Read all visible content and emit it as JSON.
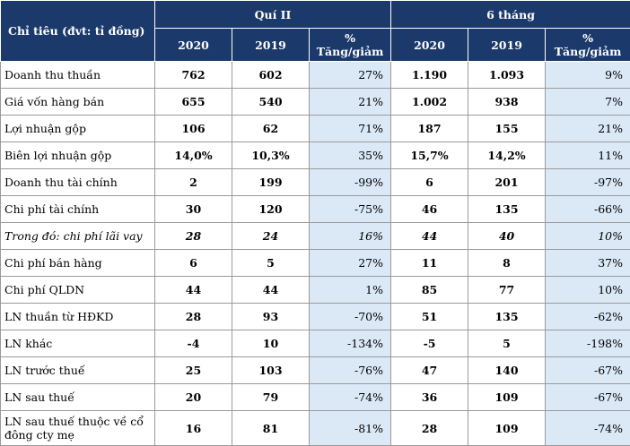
{
  "header": {
    "label": "Chỉ tiêu (đvt: tỉ đồng)",
    "q2": "Quí II",
    "h1": "6 tháng",
    "y2020": "2020",
    "y2019": "2019",
    "pct_top": "%",
    "pct_bottom": "Tăng/giảm"
  },
  "rows": [
    {
      "label": "Doanh thu thuần",
      "q20": "762",
      "q19": "602",
      "qp": "27%",
      "h20": "1.190",
      "h19": "1.093",
      "hp": "9%"
    },
    {
      "label": "Giá vốn hàng bán",
      "q20": "655",
      "q19": "540",
      "qp": "21%",
      "h20": "1.002",
      "h19": "938",
      "hp": "7%"
    },
    {
      "label": "Lợi nhuận gộp",
      "q20": "106",
      "q19": "62",
      "qp": "71%",
      "h20": "187",
      "h19": "155",
      "hp": "21%"
    },
    {
      "label": "Biên lợi nhuận gộp",
      "q20": "14,0%",
      "q19": "10,3%",
      "qp": "35%",
      "h20": "15,7%",
      "h19": "14,2%",
      "hp": "11%"
    },
    {
      "label": "Doanh thu tài chính",
      "q20": "2",
      "q19": "199",
      "qp": "-99%",
      "h20": "6",
      "h19": "201",
      "hp": "-97%"
    },
    {
      "label": "Chi phí tài chính",
      "q20": "30",
      "q19": "120",
      "qp": "-75%",
      "h20": "46",
      "h19": "135",
      "hp": "-66%"
    },
    {
      "label": "Trong đó: chi phí lãi vay",
      "q20": "28",
      "q19": "24",
      "qp": "16%",
      "h20": "44",
      "h19": "40",
      "hp": "10%"
    },
    {
      "label": "Chi phí bán hàng",
      "q20": "6",
      "q19": "5",
      "qp": "27%",
      "h20": "11",
      "h19": "8",
      "hp": "37%"
    },
    {
      "label": "Chi phí QLDN",
      "q20": "44",
      "q19": "44",
      "qp": "1%",
      "h20": "85",
      "h19": "77",
      "hp": "10%"
    },
    {
      "label": "LN thuần từ HĐKD",
      "q20": "28",
      "q19": "93",
      "qp": "-70%",
      "h20": "51",
      "h19": "135",
      "hp": "-62%"
    },
    {
      "label": "LN khác",
      "q20": "-4",
      "q19": "10",
      "qp": "-134%",
      "h20": "-5",
      "h19": "5",
      "hp": "-198%"
    },
    {
      "label": "LN trước thuế",
      "q20": "25",
      "q19": "103",
      "qp": "-76%",
      "h20": "47",
      "h19": "140",
      "hp": "-67%"
    },
    {
      "label": "LN sau thuế",
      "q20": "20",
      "q19": "79",
      "qp": "-74%",
      "h20": "36",
      "h19": "109",
      "hp": "-67%"
    },
    {
      "label": "LN sau thuế thuộc về cổ đông cty mẹ",
      "q20": "16",
      "q19": "81",
      "qp": "-81%",
      "h20": "28",
      "h19": "109",
      "hp": "-74%"
    }
  ]
}
